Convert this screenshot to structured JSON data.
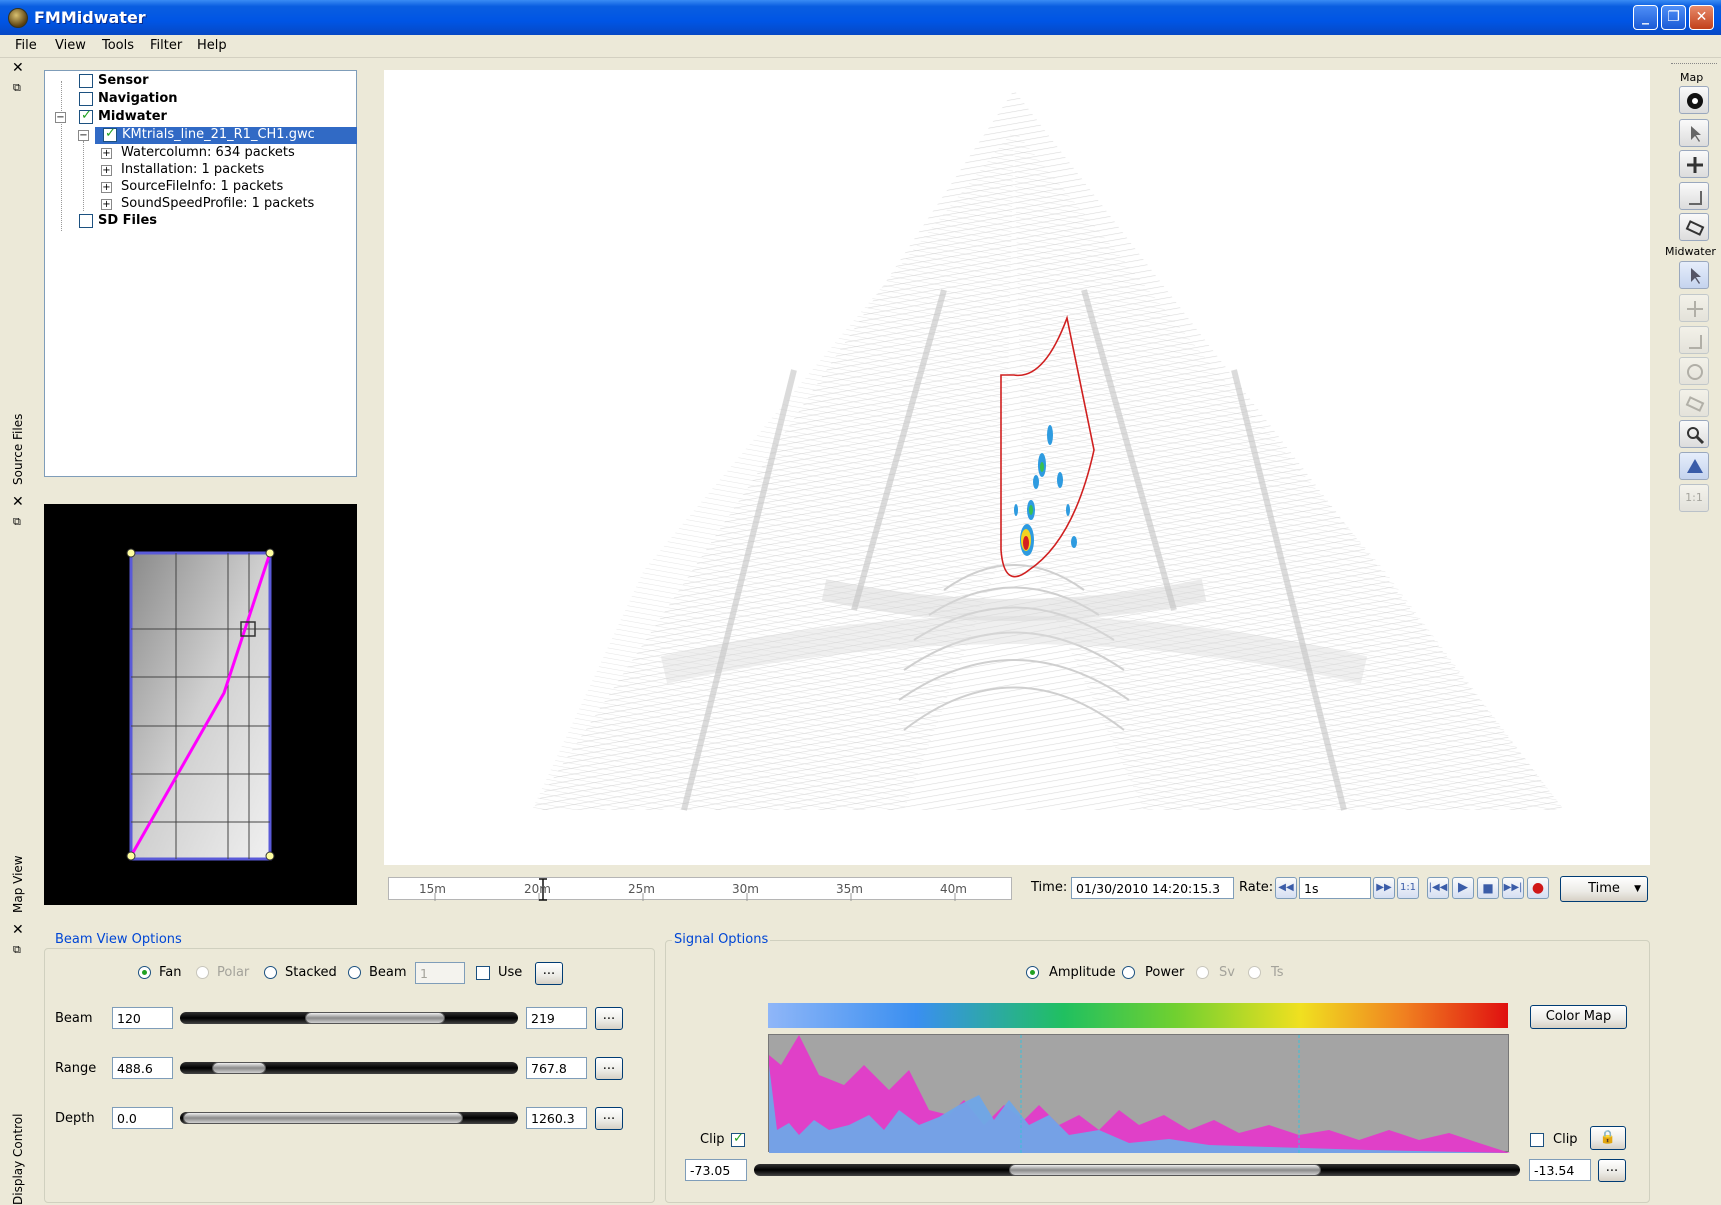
{
  "window": {
    "title": "FMMidwater"
  },
  "menu": [
    "File",
    "View",
    "Tools",
    "Filter",
    "Help"
  ],
  "docks": {
    "source_files": "Source Files",
    "map_view": "Map View",
    "display_control": "Display Control"
  },
  "tree": {
    "sensor": "Sensor",
    "navigation": "Navigation",
    "midwater": "Midwater",
    "file": "KMtrials_line_21_R1_CH1.gwc",
    "children": [
      "Watercolumn: 634 packets",
      "Installation: 1 packets",
      "SourceFileInfo: 1 packets",
      "SoundSpeedProfile: 1 packets"
    ],
    "sd_files": "SD Files"
  },
  "timeline": {
    "ticks": [
      "15m",
      "20m",
      "25m",
      "30m",
      "35m",
      "40m"
    ],
    "time_label": "Time:",
    "time_value": "01/30/2010 14:20:15.3",
    "rate_label": "Rate:",
    "rate_value": "1s",
    "one_to_one": "1:1",
    "mode": "Time"
  },
  "toolbar": {
    "map_label": "Map",
    "midwater_label": "Midwater",
    "one_to_one": "1:1"
  },
  "beam_view": {
    "title": "Beam View Options",
    "modes": [
      "Fan",
      "Polar",
      "Stacked",
      "Beam"
    ],
    "beam_spin": "1",
    "use_label": "Use",
    "ellipsis": "...",
    "rows": [
      {
        "label": "Beam",
        "min": "120",
        "max": "219"
      },
      {
        "label": "Range",
        "min": "488.6",
        "max": "767.8"
      },
      {
        "label": "Depth",
        "min": "0.0",
        "max": "1260.3"
      }
    ]
  },
  "signal": {
    "title": "Signal Options",
    "modes": [
      "Amplitude",
      "Power",
      "Sv",
      "Ts"
    ],
    "color_map_button": "Color Map",
    "clip_label": "Clip",
    "min_value": "-73.05",
    "max_value": "-13.54",
    "ellipsis": "..."
  },
  "colors": {
    "accent": "#316ac5",
    "selection": "#316ac5",
    "track": "#ff00ff",
    "polygon": "#d02020"
  }
}
